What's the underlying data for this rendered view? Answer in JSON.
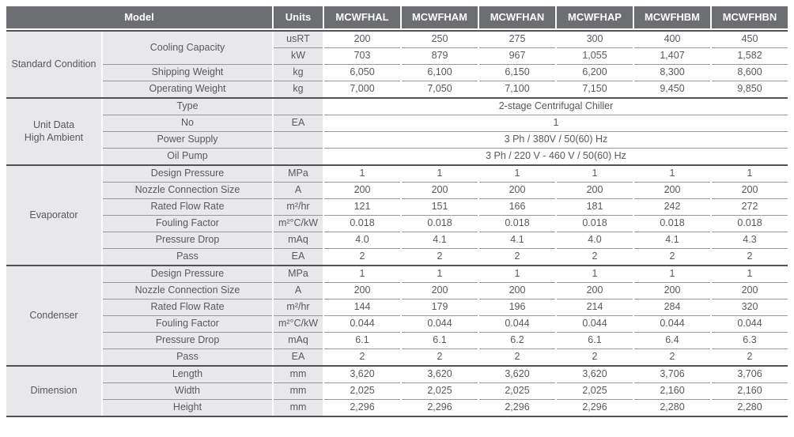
{
  "colors": {
    "header_bg": "#6d6e71",
    "header_text": "#ffffff",
    "label_bg": "#e8e8ea",
    "text": "#58595b",
    "row_line": "#98989c",
    "section_line": "#515256",
    "background": "#ffffff"
  },
  "table": {
    "header": {
      "model_label": "Model",
      "units_label": "Units",
      "columns": [
        "MCWFHAL",
        "MCWFHAM",
        "MCWFHAN",
        "MCWFHAP",
        "MCWFHBM",
        "MCWFHBN"
      ]
    },
    "sections": [
      {
        "name": "Standard Condition",
        "rows": [
          {
            "parameter": "Cooling Capacity",
            "param_rowspan": 2,
            "unit": "usRT",
            "values": [
              "200",
              "250",
              "275",
              "300",
              "400",
              "450"
            ]
          },
          {
            "unit": "kW",
            "values": [
              "703",
              "879",
              "967",
              "1,055",
              "1,407",
              "1,582"
            ]
          },
          {
            "parameter": "Shipping Weight",
            "unit": "kg",
            "values": [
              "6,050",
              "6,100",
              "6,150",
              "6,200",
              "8,300",
              "8,600"
            ]
          },
          {
            "parameter": "Operating Weight",
            "unit": "kg",
            "values": [
              "7,000",
              "7,050",
              "7,100",
              "7,150",
              "9,450",
              "9,850"
            ]
          }
        ]
      },
      {
        "name": "Unit Data\nHigh Ambient",
        "rows": [
          {
            "parameter": "Type",
            "unit": "",
            "span_value": "2-stage Centrifugal Chiller"
          },
          {
            "parameter": "No",
            "unit": "EA",
            "span_value": "1"
          },
          {
            "parameter": "Power Supply",
            "unit": "",
            "span_value": "3 Ph / 380V / 50(60) Hz"
          },
          {
            "parameter": "Oil Pump",
            "unit": "",
            "span_value": "3 Ph / 220 V - 460 V / 50(60) Hz"
          }
        ]
      },
      {
        "name": "Evaporator",
        "rows": [
          {
            "parameter": "Design Pressure",
            "unit": "MPa",
            "values": [
              "1",
              "1",
              "1",
              "1",
              "1",
              "1"
            ]
          },
          {
            "parameter": "Nozzle Connection Size",
            "unit": "A",
            "values": [
              "200",
              "200",
              "200",
              "200",
              "200",
              "200"
            ]
          },
          {
            "parameter": "Rated Flow Rate",
            "unit": "m²/hr",
            "values": [
              "121",
              "151",
              "166",
              "181",
              "242",
              "272"
            ]
          },
          {
            "parameter": "Fouling Factor",
            "unit": "m²°C/kW",
            "values": [
              "0.018",
              "0.018",
              "0.018",
              "0.018",
              "0.018",
              "0.018"
            ]
          },
          {
            "parameter": "Pressure Drop",
            "unit": "mAq",
            "values": [
              "4.0",
              "4.1",
              "4.1",
              "4.0",
              "4.1",
              "4.3"
            ]
          },
          {
            "parameter": "Pass",
            "unit": "EA",
            "values": [
              "2",
              "2",
              "2",
              "2",
              "2",
              "2"
            ]
          }
        ]
      },
      {
        "name": "Condenser",
        "rows": [
          {
            "parameter": "Design Pressure",
            "unit": "MPa",
            "values": [
              "1",
              "1",
              "1",
              "1",
              "1",
              "1"
            ]
          },
          {
            "parameter": "Nozzle Connection Size",
            "unit": "A",
            "values": [
              "200",
              "200",
              "200",
              "200",
              "200",
              "200"
            ]
          },
          {
            "parameter": "Rated Flow Rate",
            "unit": "m²/hr",
            "values": [
              "144",
              "179",
              "196",
              "214",
              "284",
              "320"
            ]
          },
          {
            "parameter": "Fouling Factor",
            "unit": "m²°C/kW",
            "values": [
              "0.044",
              "0.044",
              "0.044",
              "0.044",
              "0.044",
              "0.044"
            ]
          },
          {
            "parameter": "Pressure Drop",
            "unit": "mAq",
            "values": [
              "6.1",
              "6.1",
              "6.2",
              "6.1",
              "6.4",
              "6.3"
            ]
          },
          {
            "parameter": "Pass",
            "unit": "EA",
            "values": [
              "2",
              "2",
              "2",
              "2",
              "2",
              "2"
            ]
          }
        ]
      },
      {
        "name": "Dimension",
        "rows": [
          {
            "parameter": "Length",
            "unit": "mm",
            "values": [
              "3,620",
              "3,620",
              "3,620",
              "3,620",
              "3,706",
              "3,706"
            ]
          },
          {
            "parameter": "Width",
            "unit": "mm",
            "values": [
              "2,025",
              "2,025",
              "2,025",
              "2,025",
              "2,160",
              "2,160"
            ]
          },
          {
            "parameter": "Height",
            "unit": "mm",
            "values": [
              "2,296",
              "2,296",
              "2,296",
              "2,296",
              "2,280",
              "2,280"
            ]
          }
        ]
      }
    ]
  }
}
